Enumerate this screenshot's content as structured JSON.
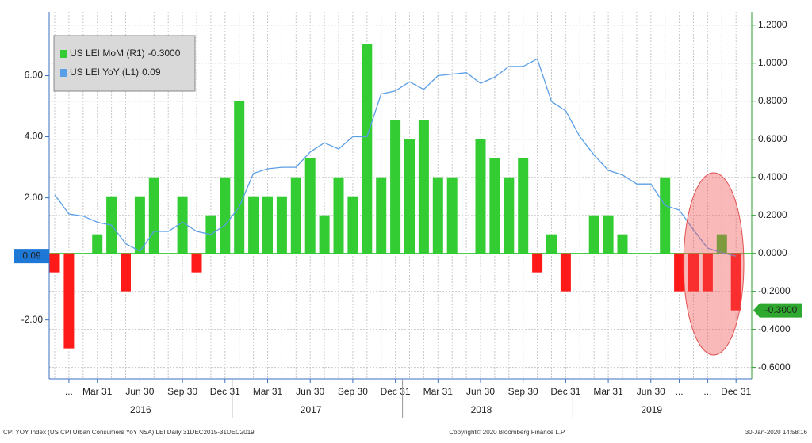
{
  "chart_data": {
    "type": "combo",
    "categories": [
      null,
      "...",
      null,
      "Mar 31",
      null,
      null,
      "Jun 30",
      null,
      null,
      "Sep 30",
      null,
      null,
      "Dec 31",
      null,
      null,
      "Mar 31",
      null,
      null,
      "Jun 30",
      null,
      null,
      "Sep 30",
      null,
      null,
      "Dec 31",
      null,
      null,
      "Mar 31",
      null,
      null,
      "Jun 30",
      null,
      null,
      "Sep 30",
      null,
      null,
      "Dec 31",
      null,
      null,
      "Mar 31",
      null,
      null,
      "Jun 30",
      null,
      "...",
      null,
      "...",
      null,
      "Dec 31"
    ],
    "year_labels": [
      "2016",
      "2017",
      "2018",
      "2019"
    ],
    "series": [
      {
        "name": "US LEI MoM (R1)",
        "last_label": "-0.3000",
        "type": "bar",
        "axis": "y2",
        "positive_color": "#33cc33",
        "negative_color": "#ff1a1a",
        "values": [
          -0.1,
          -0.5,
          0,
          0.1,
          0.3,
          -0.2,
          0.3,
          0.4,
          0,
          0.3,
          -0.1,
          0.2,
          0.4,
          0.8,
          0.3,
          0.3,
          0.3,
          0.4,
          0.5,
          0.2,
          0.4,
          0.3,
          1.1,
          0.4,
          0.7,
          0.6,
          0.7,
          0.4,
          0.4,
          0,
          0.6,
          0.5,
          0.4,
          0.5,
          -0.1,
          0.1,
          -0.2,
          0,
          0.2,
          0.2,
          0.1,
          0,
          0,
          0.4,
          -0.2,
          -0.2,
          -0.2,
          0.1,
          -0.3
        ]
      },
      {
        "name": "US LEI YoY (L1)",
        "last_label": "0.09",
        "type": "line",
        "color": "#5a9fe6",
        "values": [
          2.1,
          1.47,
          1.4,
          1.2,
          1.1,
          0.5,
          0.25,
          0.9,
          0.9,
          1.2,
          0.9,
          0.8,
          1.1,
          1.7,
          2.8,
          2.95,
          3.0,
          3.0,
          3.5,
          3.8,
          3.6,
          4.0,
          4.0,
          5.4,
          5.5,
          5.8,
          5.55,
          6.0,
          6.05,
          6.1,
          5.75,
          5.95,
          6.3,
          6.3,
          6.55,
          5.15,
          4.85,
          4.0,
          3.4,
          2.9,
          2.75,
          2.45,
          2.45,
          1.75,
          1.6,
          0.95,
          0.35,
          0.2,
          0.09
        ]
      }
    ],
    "ylim": [
      -3.93,
      8.09
    ],
    "yticks": [
      {
        "value": -2,
        "label": "-2.00"
      },
      {
        "value": 2,
        "label": "2.00"
      },
      {
        "value": 4,
        "label": "4.00"
      },
      {
        "value": 6,
        "label": "6.00"
      }
    ],
    "y2lim": [
      -0.66,
      1.27
    ],
    "y2ticks": [
      {
        "value": -0.6,
        "label": "-0.6000"
      },
      {
        "value": -0.4,
        "label": "-0.4000"
      },
      {
        "value": -0.2,
        "label": "-0.2000"
      },
      {
        "value": 0,
        "label": "0.0000"
      },
      {
        "value": 0.2,
        "label": "0.2000"
      },
      {
        "value": 0.4,
        "label": "0.4000"
      },
      {
        "value": 0.6,
        "label": "0.6000"
      },
      {
        "value": 0.8,
        "label": "0.8000"
      },
      {
        "value": 1.0,
        "label": "1.0000"
      },
      {
        "value": 1.2,
        "label": "1.2000"
      }
    ],
    "grid": true,
    "footer_left": "CPI YOY Index (US CPI Urban Consumers YoY NSA) LEI  Daily 31DEC2015-31DEC2019",
    "footer_center": "Copyright© 2020 Bloomberg Finance L.P.",
    "footer_right": "30-Jan-2020 14:58:16"
  }
}
